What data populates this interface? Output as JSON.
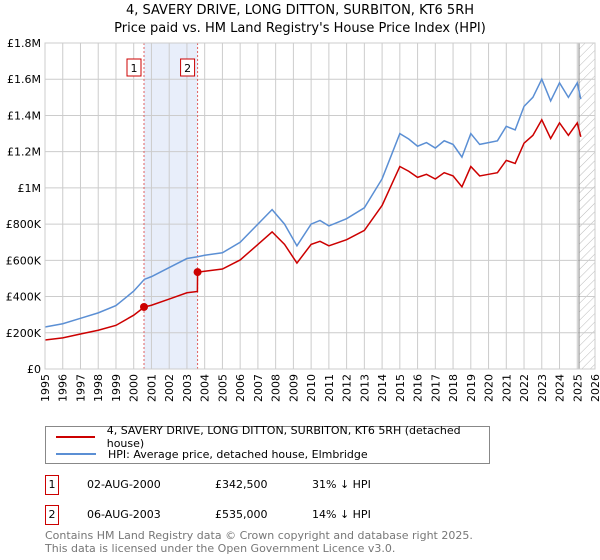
{
  "chart_data": {
    "type": "line",
    "title": "4, SAVERY DRIVE, LONG DITTON, SURBITON, KT6 5RH",
    "subtitle": "Price paid vs. HM Land Registry's House Price Index (HPI)",
    "xlim": [
      1995,
      2026
    ],
    "ylim": [
      0,
      1800000
    ],
    "x_ticks": [
      "1995",
      "1996",
      "1997",
      "1998",
      "1999",
      "2000",
      "2001",
      "2002",
      "2003",
      "2004",
      "2005",
      "2006",
      "2007",
      "2008",
      "2009",
      "2010",
      "2011",
      "2012",
      "2013",
      "2014",
      "2015",
      "2016",
      "2017",
      "2018",
      "2019",
      "2020",
      "2021",
      "2022",
      "2023",
      "2024",
      "2025",
      "2026"
    ],
    "y_ticks": [
      {
        "v": 0,
        "label": "£0"
      },
      {
        "v": 200000,
        "label": "£200K"
      },
      {
        "v": 400000,
        "label": "£400K"
      },
      {
        "v": 600000,
        "label": "£600K"
      },
      {
        "v": 800000,
        "label": "£800K"
      },
      {
        "v": 1000000,
        "label": "£1M"
      },
      {
        "v": 1200000,
        "label": "£1.2M"
      },
      {
        "v": 1400000,
        "label": "£1.4M"
      },
      {
        "v": 1600000,
        "label": "£1.6M"
      },
      {
        "v": 1800000,
        "label": "£1.8M"
      }
    ],
    "grid": true,
    "series": [
      {
        "name": "4, SAVERY DRIVE, LONG DITTON, SURBITON, KT6 5RH (detached house)",
        "color": "#cc0000",
        "x": [
          1995,
          1996,
          1997,
          1998,
          1999,
          2000,
          2000.6,
          2001,
          2002,
          2003,
          2003.59,
          2003.6,
          2004,
          2005,
          2006,
          2007,
          2007.8,
          2008.5,
          2009.2,
          2010,
          2010.5,
          2011,
          2012,
          2013,
          2014,
          2014.6,
          2015,
          2015.5,
          2016,
          2016.5,
          2017,
          2017.5,
          2018,
          2018.5,
          2019,
          2019.5,
          2020,
          2020.5,
          2021,
          2021.5,
          2022,
          2022.5,
          2023,
          2023.5,
          2024,
          2024.5,
          2025,
          2025.2
        ],
        "y": [
          160000,
          172000,
          193000,
          214000,
          241000,
          297000,
          342500,
          352000,
          386000,
          421000,
          428000,
          535000,
          540000,
          552000,
          602000,
          688000,
          757000,
          688000,
          585000,
          688000,
          705000,
          680000,
          714000,
          765000,
          903000,
          1032000,
          1118000,
          1092000,
          1058000,
          1075000,
          1049000,
          1084000,
          1066000,
          1006000,
          1118000,
          1066000,
          1075000,
          1084000,
          1152000,
          1135000,
          1247000,
          1290000,
          1376000,
          1273000,
          1359000,
          1290000,
          1359000,
          1282000
        ]
      },
      {
        "name": "HPI: Average price, detached house, Elmbridge",
        "color": "#5b8fd4",
        "x": [
          1995,
          1996,
          1997,
          1998,
          1999,
          2000,
          2000.6,
          2001,
          2002,
          2003,
          2003.6,
          2004,
          2005,
          2006,
          2007,
          2007.8,
          2008.5,
          2009.2,
          2010,
          2010.5,
          2011,
          2012,
          2013,
          2014,
          2014.6,
          2015,
          2015.5,
          2016,
          2016.5,
          2017,
          2017.5,
          2018,
          2018.5,
          2019,
          2019.5,
          2020,
          2020.5,
          2021,
          2021.5,
          2022,
          2022.5,
          2023,
          2023.5,
          2024,
          2024.5,
          2025,
          2025.2
        ],
        "y": [
          232000,
          250000,
          280000,
          310000,
          350000,
          430000,
          495000,
          510000,
          560000,
          610000,
          620000,
          628000,
          642000,
          700000,
          800000,
          880000,
          800000,
          680000,
          800000,
          820000,
          790000,
          830000,
          890000,
          1050000,
          1200000,
          1300000,
          1270000,
          1230000,
          1250000,
          1220000,
          1260000,
          1240000,
          1170000,
          1300000,
          1240000,
          1250000,
          1260000,
          1340000,
          1320000,
          1450000,
          1500000,
          1600000,
          1480000,
          1580000,
          1500000,
          1580000,
          1490000
        ]
      }
    ],
    "sales": [
      {
        "id": "1",
        "x": 2000.58,
        "y": 342500
      },
      {
        "id": "2",
        "x": 2003.6,
        "y": 535000
      }
    ],
    "forecast_from": 2025.1
  },
  "legend": {
    "red": "4, SAVERY DRIVE, LONG DITTON, SURBITON, KT6 5RH (detached house)",
    "blue": "HPI: Average price, detached house, Elmbridge"
  },
  "transactions": [
    {
      "id": "1",
      "date": "02-AUG-2000",
      "price": "£342,500",
      "hpi": "31% ↓ HPI"
    },
    {
      "id": "2",
      "date": "06-AUG-2003",
      "price": "£535,000",
      "hpi": "14% ↓ HPI"
    }
  ],
  "footer": {
    "line1": "Contains HM Land Registry data © Crown copyright and database right 2025.",
    "line2": "This data is licensed under the Open Government Licence v3.0."
  }
}
